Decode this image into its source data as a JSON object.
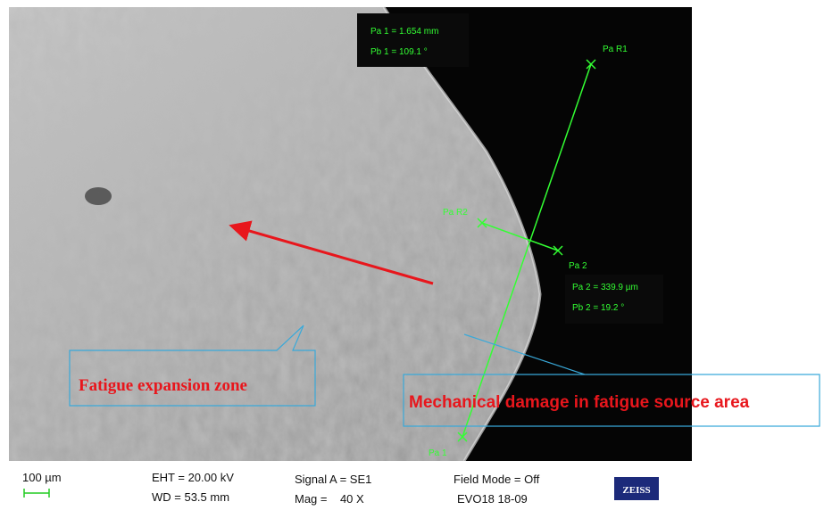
{
  "measurements": {
    "pa1": "Pa 1 = 1.654 mm",
    "pb1": "Pb 1 = 109.1 °",
    "pa_r1": "Pa R1",
    "pa_r2": "Pa R2",
    "pa2_label": "Pa 2",
    "pa2": "Pa 2 = 339.9 µm",
    "pb2": "Pb 2 = 19.2 °",
    "pa1_label": "Pa 1"
  },
  "annotations": {
    "fatigue_zone": "Fatigue expansion zone",
    "source_area": "Mechanical damage in fatigue source area"
  },
  "info_bar": {
    "scale": "100 µm",
    "eht": "EHT = 20.00 kV",
    "wd": "WD = 53.5 mm",
    "signal": "Signal A = SE1",
    "mag": "Mag =    40 X",
    "field_mode": "Field Mode = Off",
    "instrument": "EVO18 18-09",
    "logo": "ZEISS"
  }
}
